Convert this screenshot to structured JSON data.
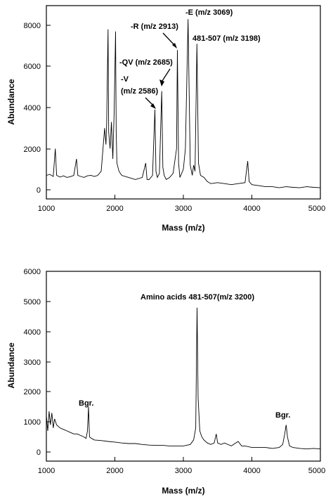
{
  "chart_data": [
    {
      "type": "line",
      "xlabel": "Mass (m/z)",
      "ylabel": "Abundance",
      "xlim": [
        1000,
        5000
      ],
      "ylim": [
        -400,
        8600
      ],
      "xticks": [
        1000,
        2000,
        3000,
        4000,
        5000
      ],
      "yticks": [
        0,
        2000,
        4000,
        6000,
        8000
      ],
      "grid": false,
      "series": [
        {
          "x": [
            1000,
            1050,
            1100,
            1130,
            1150,
            1200,
            1250,
            1300,
            1350,
            1400,
            1440,
            1460,
            1500,
            1550,
            1600,
            1650,
            1700,
            1750,
            1800,
            1820,
            1850,
            1870,
            1880,
            1900,
            1910,
            1930,
            1950,
            1970,
            1990,
            2010,
            2020,
            2030,
            2060,
            2100,
            2200,
            2300,
            2400,
            2450,
            2470,
            2500,
            2550,
            2585,
            2600,
            2620,
            2650,
            2684,
            2700,
            2720,
            2750,
            2800,
            2850,
            2900,
            2913,
            2930,
            2950,
            3000,
            3030,
            3069,
            3100,
            3130,
            3150,
            3170,
            3198,
            3220,
            3250,
            3300,
            3350,
            3400,
            3500,
            3600,
            3700,
            3800,
            3900,
            3940,
            3960,
            4000,
            4100,
            4200,
            4300,
            4400,
            4500,
            4600,
            4700,
            4800,
            4900,
            5000
          ],
          "values": [
            700,
            750,
            650,
            2000,
            700,
            620,
            680,
            600,
            640,
            700,
            1500,
            700,
            650,
            600,
            680,
            700,
            650,
            700,
            900,
            1700,
            3000,
            2200,
            3200,
            7800,
            2800,
            2000,
            3300,
            1500,
            3800,
            7700,
            2800,
            1300,
            900,
            700,
            600,
            500,
            600,
            1300,
            500,
            500,
            700,
            3900,
            900,
            600,
            800,
            4800,
            1100,
            700,
            500,
            600,
            800,
            2000,
            6800,
            1300,
            600,
            1000,
            2000,
            8300,
            1200,
            700,
            1200,
            900,
            7100,
            1300,
            700,
            600,
            400,
            300,
            350,
            300,
            250,
            300,
            350,
            1400,
            400,
            250,
            200,
            150,
            150,
            100,
            150,
            120,
            100,
            150,
            120,
            100
          ]
        }
      ],
      "annotations": [
        {
          "text": "-E (m/z 3069)"
        },
        {
          "text": "-R (m/z 2913)"
        },
        {
          "text": "481-507 (m/z 3198)"
        },
        {
          "text": "-QV (m/z 2685)"
        },
        {
          "text": "-V"
        },
        {
          "text": "(m/z 2586)"
        }
      ]
    },
    {
      "type": "line",
      "xlabel": "Mass (m/z)",
      "ylabel": "Abundance",
      "xlim": [
        1000,
        5000
      ],
      "ylim": [
        -300,
        6000
      ],
      "xticks": [
        1000,
        2000,
        3000,
        4000,
        5000
      ],
      "yticks": [
        0,
        1000,
        2000,
        3000,
        4000,
        5000,
        6000
      ],
      "grid": false,
      "series": [
        {
          "x": [
            1000,
            1020,
            1040,
            1060,
            1080,
            1100,
            1120,
            1150,
            1200,
            1250,
            1300,
            1350,
            1400,
            1450,
            1500,
            1550,
            1580,
            1600,
            1615,
            1630,
            1660,
            1700,
            1800,
            1900,
            2000,
            2100,
            2200,
            2300,
            2400,
            2500,
            2600,
            2700,
            2800,
            2900,
            3000,
            3100,
            3150,
            3180,
            3200,
            3215,
            3240,
            3270,
            3300,
            3350,
            3400,
            3450,
            3480,
            3500,
            3550,
            3600,
            3700,
            3800,
            3850,
            3900,
            4000,
            4100,
            4200,
            4300,
            4400,
            4450,
            4480,
            4500,
            4520,
            4550,
            4600,
            4700,
            4800,
            4900,
            5000
          ],
          "values": [
            1200,
            700,
            1350,
            900,
            1300,
            800,
            1100,
            900,
            800,
            750,
            700,
            650,
            600,
            600,
            550,
            500,
            450,
            700,
            1500,
            500,
            450,
            400,
            380,
            350,
            330,
            300,
            280,
            280,
            250,
            230,
            220,
            220,
            200,
            200,
            200,
            250,
            400,
            800,
            4800,
            1800,
            700,
            500,
            400,
            300,
            250,
            300,
            600,
            300,
            250,
            300,
            200,
            350,
            200,
            200,
            150,
            150,
            150,
            120,
            150,
            250,
            600,
            900,
            500,
            200,
            150,
            120,
            100,
            120,
            100
          ]
        }
      ],
      "annotations": [
        {
          "text": "Amino acids 481-507(m/z 3200)"
        },
        {
          "text": "Bgr."
        },
        {
          "text": "Bgr."
        }
      ]
    }
  ]
}
